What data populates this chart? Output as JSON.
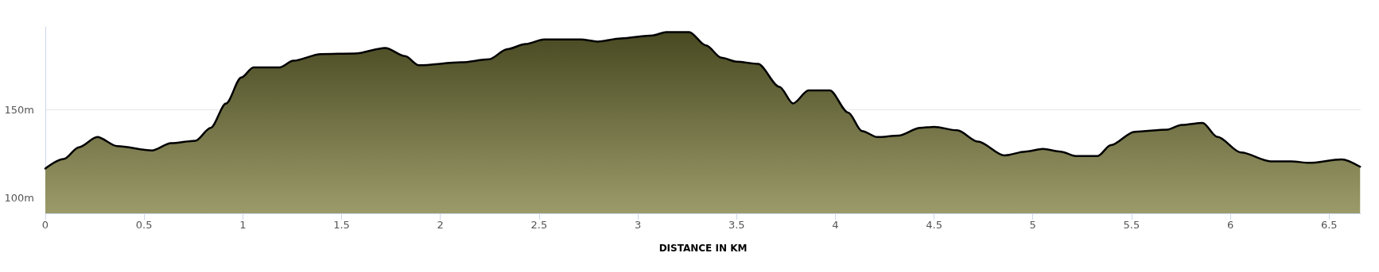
{
  "chart_data": {
    "type": "area",
    "xlabel": "DISTANCE IN KM",
    "x": [
      0,
      0.093,
      0.17,
      0.263,
      0.364,
      0.54,
      0.636,
      0.76,
      0.837,
      0.915,
      0.992,
      1.054,
      1.186,
      1.256,
      1.395,
      1.566,
      1.721,
      1.822,
      1.891,
      2.107,
      2.246,
      2.339,
      2.432,
      2.525,
      2.711,
      2.796,
      2.912,
      3.074,
      3.144,
      3.26,
      3.345,
      3.423,
      3.5,
      3.608,
      3.717,
      3.786,
      3.864,
      3.972,
      4.065,
      4.135,
      4.212,
      4.32,
      4.429,
      4.5,
      4.617,
      4.722,
      4.856,
      4.961,
      5.051,
      5.141,
      5.216,
      5.328,
      5.395,
      5.515,
      5.68,
      5.754,
      5.859,
      5.934,
      6.054,
      6.204,
      6.308,
      6.398,
      6.563,
      6.657
    ],
    "series": [
      {
        "color": "#7a7a38",
        "values": [
          116.5,
          121.9,
          128.6,
          134.4,
          129.2,
          126.7,
          130.9,
          132.3,
          139.6,
          153.5,
          168.2,
          174,
          174,
          177.8,
          181.6,
          181.9,
          185.1,
          180.4,
          175.2,
          176.9,
          178.6,
          184.4,
          187.3,
          189.9,
          189.9,
          188.7,
          190.5,
          192.2,
          194.1,
          194.1,
          186.5,
          179.5,
          177.3,
          176,
          163,
          153.5,
          160.9,
          160.9,
          148.3,
          137.8,
          134.4,
          135.2,
          139.6,
          140.2,
          138.2,
          131.8,
          123.9,
          126.1,
          127.6,
          126.1,
          123.6,
          123.6,
          129.8,
          137.4,
          138.6,
          141.3,
          142.4,
          134.5,
          125.6,
          120.6,
          120.6,
          119.7,
          121.7,
          117.5
        ]
      }
    ],
    "xlim": [
      0,
      6.66
    ],
    "xticks": [
      0,
      0.5,
      1,
      1.5,
      2,
      2.5,
      3,
      3.5,
      4,
      4.5,
      5,
      5.5,
      6,
      6.5
    ],
    "ylim": [
      91,
      197
    ],
    "yticks": [
      {
        "value": 100,
        "label": "100m"
      },
      {
        "value": 150,
        "label": "150m"
      }
    ],
    "grid": "y",
    "marker": "none",
    "line_style": "solid"
  }
}
